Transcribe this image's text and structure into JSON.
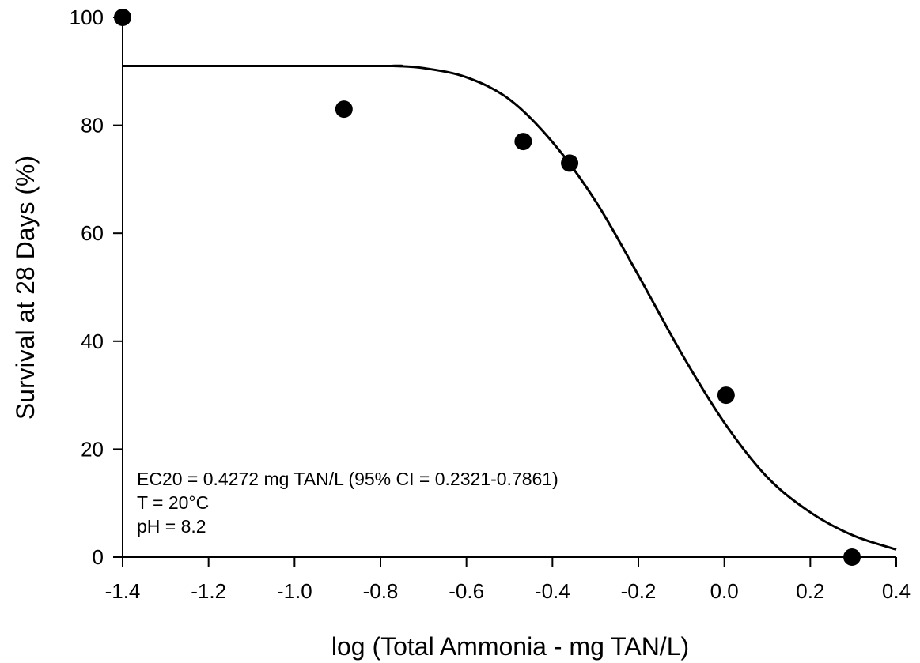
{
  "chart_data": {
    "type": "scatter",
    "title": "",
    "xlabel": "log (Total Ammonia - mg TAN/L)",
    "ylabel": "Survival at 28 Days (%)",
    "xlim": [
      -1.4,
      0.4
    ],
    "ylim": [
      0,
      100
    ],
    "x_ticks": [
      -1.4,
      -1.2,
      -1.0,
      -0.8,
      -0.6,
      -0.4,
      -0.2,
      0.0,
      0.2,
      0.4
    ],
    "x_tick_labels": [
      "-1.4",
      "-1.2",
      "-1.0",
      "-0.8",
      "-0.6",
      "-0.4",
      "-0.2",
      "0.0",
      "0.2",
      "0.4"
    ],
    "y_ticks": [
      0,
      20,
      40,
      60,
      80,
      100
    ],
    "y_tick_labels": [
      "0",
      "20",
      "40",
      "60",
      "80",
      "100"
    ],
    "grid": false,
    "series": [
      {
        "type": "scatter",
        "marker": "filled-circle",
        "color": "#000000",
        "x": [
          -1.4,
          -0.885,
          -0.468,
          -0.36,
          0.004,
          0.297
        ],
        "y": [
          100,
          83,
          77,
          73,
          30,
          0
        ]
      },
      {
        "type": "line",
        "color": "#000000",
        "x": [
          -1.4,
          -0.8,
          -0.77,
          -0.7,
          -0.6,
          -0.5,
          -0.4,
          -0.3,
          -0.2,
          -0.1,
          0.0,
          0.1,
          0.2,
          0.3,
          0.4
        ],
        "y": [
          91,
          91,
          91,
          90.6,
          88.9,
          84.8,
          76.9,
          66.0,
          52.2,
          37.8,
          24.9,
          14.8,
          8.3,
          4.0,
          1.4
        ]
      }
    ],
    "annotations": [
      "EC20 = 0.4272 mg TAN/L (95% CI = 0.2321-0.7861)",
      "T = 20°C",
      "pH = 8.2"
    ]
  }
}
